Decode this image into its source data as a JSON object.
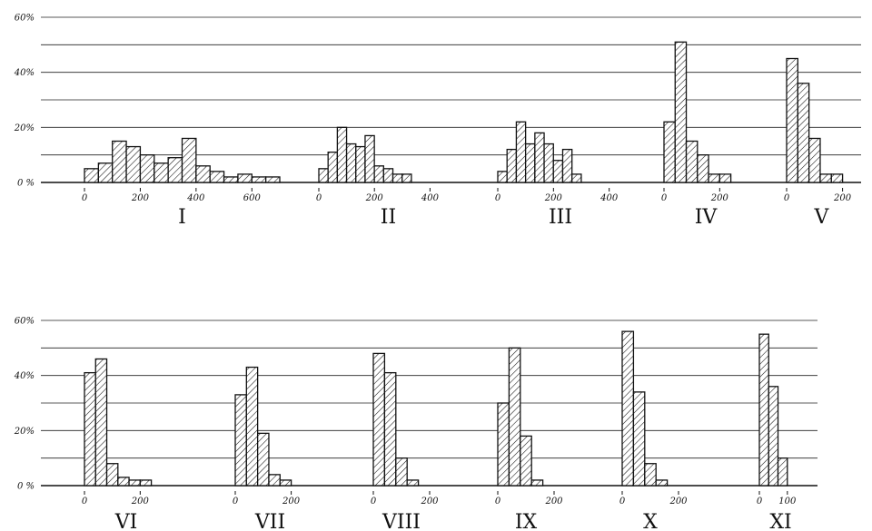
{
  "chart_data": {
    "type": "bar",
    "layout": "histogram panels in two rows with shared horizontal gridlines",
    "grid": true,
    "rows": [
      {
        "yticks": [
          "60%",
          "40%",
          "20%",
          "0 %"
        ],
        "ylim": [
          0,
          60
        ]
      },
      {
        "yticks": [
          "60%",
          "40%",
          "20%",
          "0 %"
        ],
        "ylim": [
          0,
          60
        ]
      }
    ],
    "panels": [
      {
        "title": "I",
        "row": 0,
        "xlim": [
          0,
          700
        ],
        "bin": 50,
        "xticks": [
          {
            "v": 0,
            "t": "0"
          },
          {
            "v": 200,
            "t": "200"
          },
          {
            "v": 400,
            "t": "400"
          },
          {
            "v": 600,
            "t": "600"
          }
        ],
        "values": [
          5,
          7,
          15,
          13,
          10,
          7,
          9,
          16,
          6,
          4,
          2,
          3,
          2,
          2
        ]
      },
      {
        "title": "II",
        "row": 0,
        "xlim": [
          0,
          500
        ],
        "bin": 33.3,
        "xticks": [
          {
            "v": 0,
            "t": "0"
          },
          {
            "v": 200,
            "t": "200"
          },
          {
            "v": 400,
            "t": "400"
          }
        ],
        "values": [
          5,
          11,
          20,
          14,
          13,
          17,
          6,
          5,
          3,
          3
        ]
      },
      {
        "title": "III",
        "row": 0,
        "xlim": [
          0,
          450
        ],
        "bin": 33.3,
        "xticks": [
          {
            "v": 0,
            "t": "0"
          },
          {
            "v": 200,
            "t": "200"
          },
          {
            "v": 400,
            "t": "400"
          }
        ],
        "values": [
          4,
          12,
          22,
          14,
          18,
          14,
          8,
          12,
          3
        ]
      },
      {
        "title": "IV",
        "row": 0,
        "xlim": [
          0,
          300
        ],
        "bin": 40,
        "xticks": [
          {
            "v": 0,
            "t": "0"
          },
          {
            "v": 200,
            "t": "200"
          }
        ],
        "values": [
          22,
          51,
          15,
          10,
          3,
          3
        ]
      },
      {
        "title": "V",
        "row": 0,
        "xlim": [
          0,
          250
        ],
        "bin": 40,
        "xticks": [
          {
            "v": 0,
            "t": "0"
          },
          {
            "v": 200,
            "t": "200"
          }
        ],
        "values": [
          45,
          36,
          16,
          3,
          3
        ]
      },
      {
        "title": "VI",
        "row": 1,
        "xlim": [
          0,
          300
        ],
        "bin": 40,
        "xticks": [
          {
            "v": 0,
            "t": "0"
          },
          {
            "v": 200,
            "t": "200"
          }
        ],
        "values": [
          41,
          46,
          8,
          3,
          2,
          2
        ]
      },
      {
        "title": "VII",
        "row": 1,
        "xlim": [
          0,
          250
        ],
        "bin": 40,
        "xticks": [
          {
            "v": 0,
            "t": "0"
          },
          {
            "v": 200,
            "t": "200"
          }
        ],
        "values": [
          33,
          43,
          19,
          4,
          2
        ]
      },
      {
        "title": "VIII",
        "row": 1,
        "xlim": [
          0,
          200
        ],
        "bin": 40,
        "xticks": [
          {
            "v": 0,
            "t": "0"
          },
          {
            "v": 200,
            "t": "200"
          }
        ],
        "values": [
          48,
          41,
          10,
          2
        ]
      },
      {
        "title": "IX",
        "row": 1,
        "xlim": [
          0,
          200
        ],
        "bin": 40,
        "xticks": [
          {
            "v": 0,
            "t": "0"
          },
          {
            "v": 200,
            "t": "200"
          }
        ],
        "values": [
          30,
          50,
          18,
          2
        ]
      },
      {
        "title": "X",
        "row": 1,
        "xlim": [
          0,
          200
        ],
        "bin": 40,
        "xticks": [
          {
            "v": 0,
            "t": "0"
          },
          {
            "v": 200,
            "t": "200"
          }
        ],
        "values": [
          56,
          34,
          8,
          2
        ]
      },
      {
        "title": "XI",
        "row": 1,
        "xlim": [
          0,
          120
        ],
        "bin": 33.3,
        "xticks": [
          {
            "v": 0,
            "t": "0"
          },
          {
            "v": 100,
            "t": "100"
          }
        ],
        "values": [
          55,
          36,
          10
        ]
      }
    ]
  }
}
